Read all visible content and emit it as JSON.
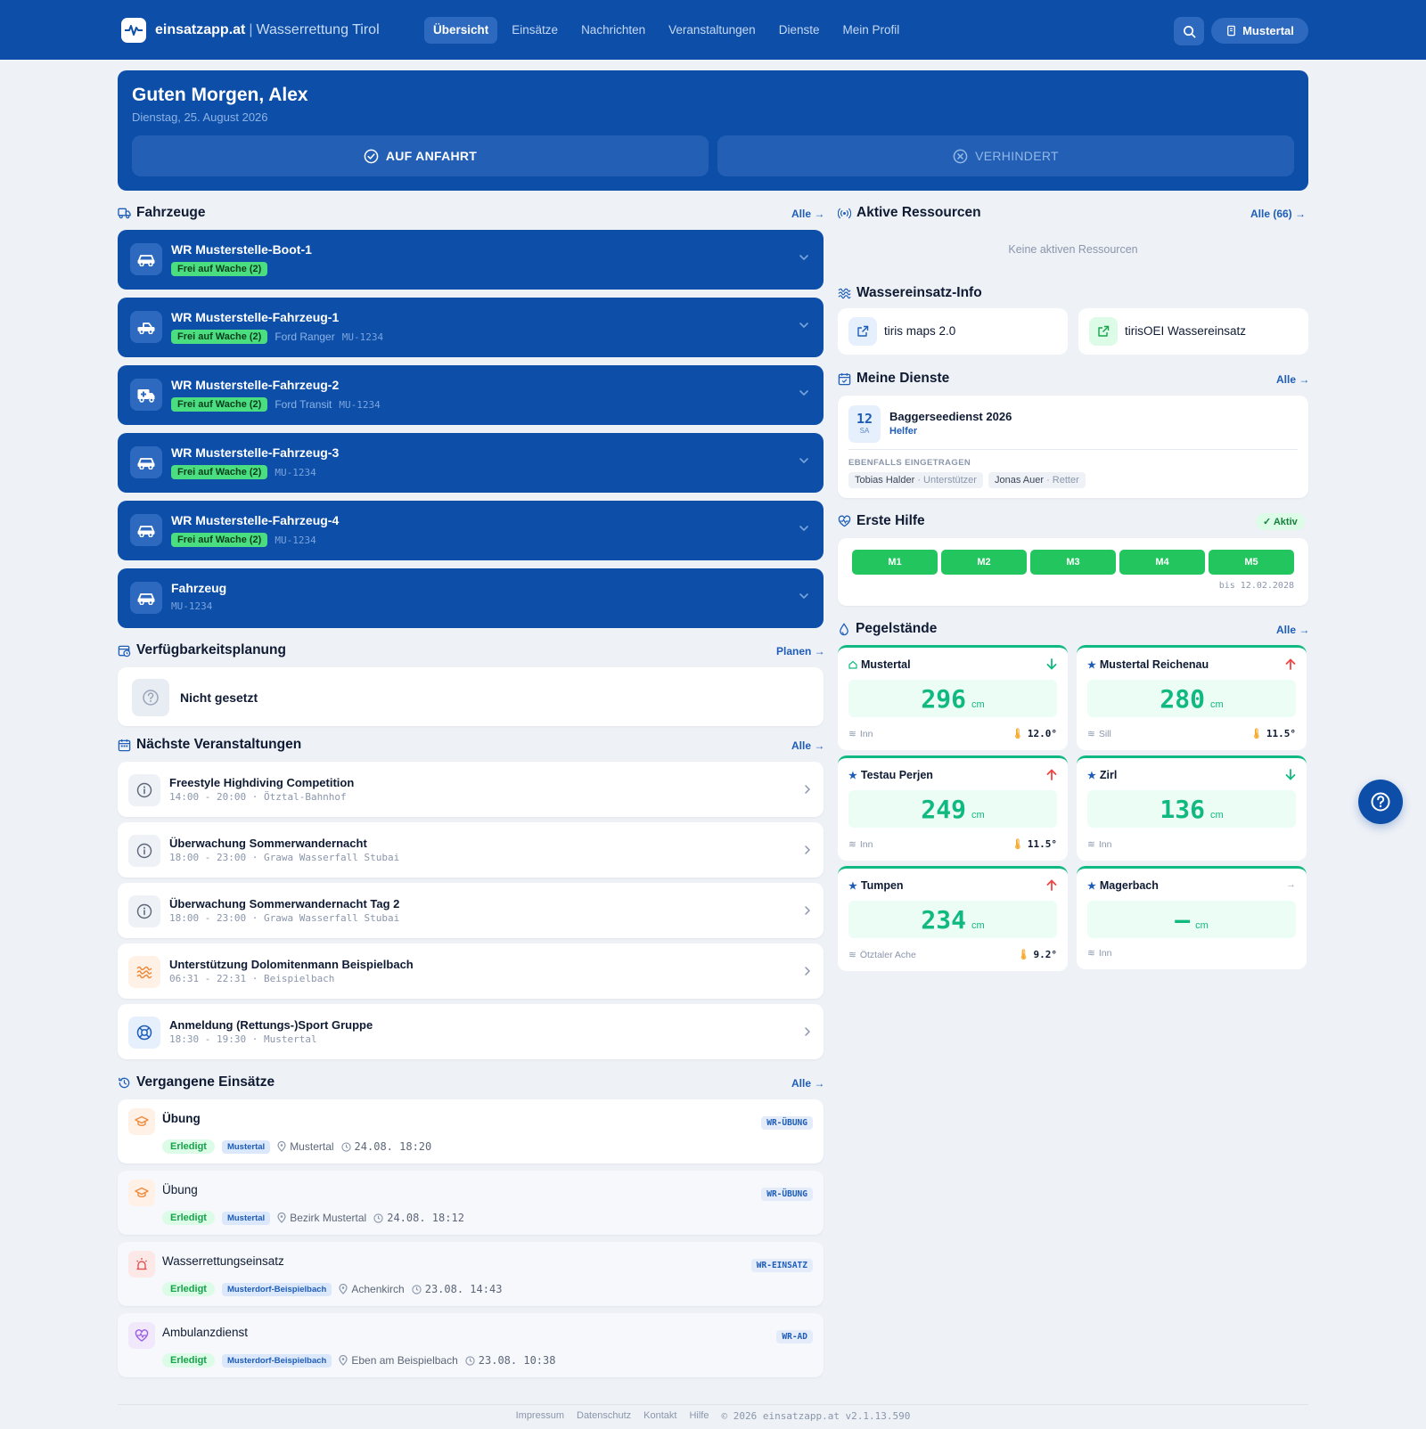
{
  "nav": {
    "brand": "einsatzapp.at",
    "brand_sep": "|",
    "brand_sub": "Wasserrettung Tirol",
    "links": [
      "Übersicht",
      "Einsätze",
      "Nachrichten",
      "Veranstaltungen",
      "Dienste",
      "Mein Profil"
    ],
    "active": "Übersicht",
    "org": "Mustertal"
  },
  "greeting": {
    "title": "Guten Morgen, Alex",
    "date": "Dienstag, 25. August 2026",
    "btn_go": "AUF ANFAHRT",
    "btn_cant": "VERHINDERT"
  },
  "vehicles": {
    "title": "Fahrzeuge",
    "link": "Alle →",
    "items": [
      {
        "name": "WR Musterstelle-Boot-1",
        "status": "Frei auf Wache (2)",
        "model": "",
        "plate": "",
        "icon": "car-icon"
      },
      {
        "name": "WR Musterstelle-Fahrzeug-1",
        "status": "Frei auf Wache (2)",
        "model": "Ford Ranger",
        "plate": "MU-1234",
        "icon": "pickup-icon"
      },
      {
        "name": "WR Musterstelle-Fahrzeug-2",
        "status": "Frei auf Wache (2)",
        "model": "Ford Transit",
        "plate": "MU-1234",
        "icon": "ambulance-icon"
      },
      {
        "name": "WR Musterstelle-Fahrzeug-3",
        "status": "Frei auf Wache (2)",
        "model": "",
        "plate": "MU-1234",
        "icon": "car-icon"
      },
      {
        "name": "WR Musterstelle-Fahrzeug-4",
        "status": "Frei auf Wache (2)",
        "model": "",
        "plate": "MU-1234",
        "icon": "car-icon"
      },
      {
        "name": "Fahrzeug",
        "status": "",
        "model": "",
        "plate": "MU-1234",
        "icon": "car-icon"
      }
    ]
  },
  "availability": {
    "title": "Verfügbarkeitsplanung",
    "link": "Planen →",
    "status": "Nicht gesetzt"
  },
  "events": {
    "title": "Nächste Veranstaltungen",
    "link": "Alle →",
    "items": [
      {
        "title": "Freestyle Highdiving Competition",
        "sub": "14:00 - 20:00 · Ötztal-Bahnhof",
        "icon": "info-icon"
      },
      {
        "title": "Überwachung Sommerwandernacht",
        "sub": "18:00 - 23:00 · Grawa Wasserfall Stubai",
        "icon": "info-icon"
      },
      {
        "title": "Überwachung Sommerwandernacht Tag 2",
        "sub": "18:00 - 23:00 · Grawa Wasserfall Stubai",
        "icon": "info-icon"
      },
      {
        "title": "Unterstützung Dolomitenmann Beispielbach",
        "sub": "06:31 - 22:31 · Beispielbach",
        "icon": "waves-icon"
      },
      {
        "title": "Anmeldung (Rettungs-)Sport Gruppe",
        "sub": "18:30 - 19:30 · Mustertal",
        "icon": "lifebuoy-icon"
      }
    ]
  },
  "past": {
    "title": "Vergangene Einsätze",
    "link": "Alle →",
    "items": [
      {
        "title": "Übung",
        "status": "Erledigt",
        "org": "Mustertal",
        "place": "Mustertal",
        "time": "24.08. 18:20",
        "code": "WR-ÜBUNG",
        "icon": "graduation-cap-icon"
      },
      {
        "title": "Übung",
        "status": "Erledigt",
        "org": "Mustertal",
        "place": "Bezirk Mustertal",
        "time": "24.08. 18:12",
        "code": "WR-ÜBUNG",
        "icon": "graduation-cap-icon"
      },
      {
        "title": "Wasserrettungseinsatz",
        "status": "Erledigt",
        "org": "Musterdorf-Beispielbach",
        "place": "Achenkirch",
        "time": "23.08. 14:43",
        "code": "WR-EINSATZ",
        "icon": "siren-icon"
      },
      {
        "title": "Ambulanzdienst",
        "status": "Erledigt",
        "org": "Musterdorf-Beispielbach",
        "place": "Eben am Beispielbach",
        "time": "23.08. 10:38",
        "code": "WR-AD",
        "icon": "heart-pulse-icon"
      }
    ]
  },
  "resources": {
    "title": "Aktive Ressourcen",
    "link": "Alle (66) →",
    "empty": "Keine aktiven Ressourcen"
  },
  "water_info": {
    "title": "Wassereinsatz-Info",
    "links": [
      "tiris maps 2.0",
      "tirisOEI Wassereinsatz"
    ]
  },
  "duties": {
    "title": "Meine Dienste",
    "link": "Alle →",
    "day": "12",
    "weekday": "SA",
    "name": "Baggerseedienst 2026",
    "role": "Helfer",
    "also_label": "EBENFALLS EINGETRAGEN",
    "others": [
      {
        "name": "Tobias Halder",
        "role": "· Unterstützer"
      },
      {
        "name": "Jonas Auer",
        "role": "· Retter"
      }
    ]
  },
  "first_aid": {
    "title": "Erste Hilfe",
    "badge": "✓ Aktiv",
    "modules": [
      "M1",
      "M2",
      "M3",
      "M4",
      "M5"
    ],
    "valid": "bis 12.02.2028"
  },
  "gauges": {
    "title": "Pegelstände",
    "link": "Alle →",
    "unit": "cm",
    "items": [
      {
        "name": "Mustertal",
        "value": "296",
        "river": "Inn",
        "temp": "12.0°",
        "trend": "down",
        "marker": "home-icon"
      },
      {
        "name": "Mustertal Reichenau",
        "value": "280",
        "river": "Sill",
        "temp": "11.5°",
        "trend": "up",
        "marker": "star-icon"
      },
      {
        "name": "Testau Perjen",
        "value": "249",
        "river": "Inn",
        "temp": "11.5°",
        "trend": "up",
        "marker": "star-icon"
      },
      {
        "name": "Zirl",
        "value": "136",
        "river": "Inn",
        "temp": "",
        "trend": "down",
        "marker": "star-icon"
      },
      {
        "name": "Tumpen",
        "value": "234",
        "river": "Ötztaler Ache",
        "temp": "9.2°",
        "trend": "up",
        "marker": "star-icon"
      },
      {
        "name": "Magerbach",
        "value": "–",
        "river": "Inn",
        "temp": "",
        "trend": "flat",
        "marker": "star-icon"
      }
    ]
  },
  "footer": {
    "links": [
      "Impressum",
      "Datenschutz",
      "Kontakt",
      "Hilfe"
    ],
    "copyright": "© 2026 einsatzapp.at v2.1.13.590"
  },
  "colors": {
    "primary": "#0d4fa8",
    "primary_light": "#2d69bf",
    "success": "#22c55e",
    "gauge": "#10b981",
    "background": "#eef1f6"
  }
}
